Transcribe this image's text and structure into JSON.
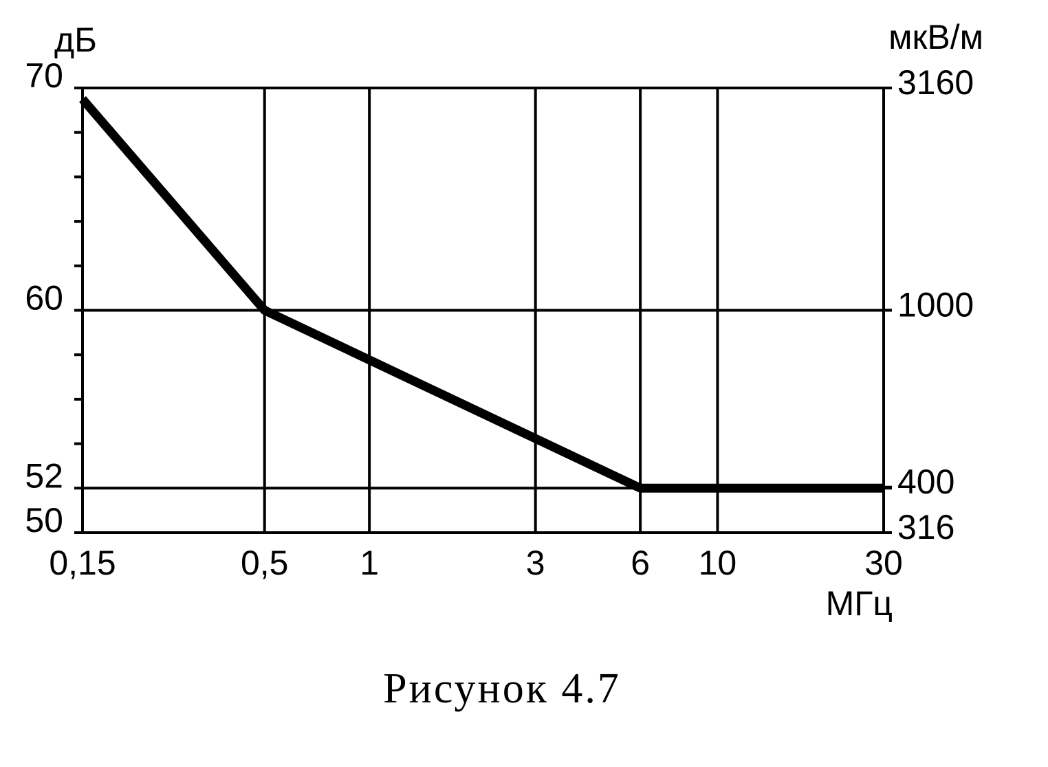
{
  "chart_data": {
    "type": "line",
    "caption": "Рисунок 4.7",
    "ylabel": "дБ",
    "y2label": "мкВ/м",
    "xlabel": "МГц",
    "x": [
      0.15,
      0.5,
      6,
      30
    ],
    "values": [
      69.5,
      60,
      52,
      52
    ],
    "color": "#000000",
    "xscale": "log",
    "xlim": [
      0.15,
      30
    ],
    "xticks": [
      {
        "value": 0.15,
        "label": "0,15"
      },
      {
        "value": 0.5,
        "label": "0,5"
      },
      1,
      3,
      6,
      10,
      30
    ],
    "ylim": [
      50,
      70
    ],
    "yticks": [
      50,
      52,
      60,
      70
    ],
    "yminorticks": [
      54,
      56,
      58,
      62,
      64,
      66,
      68
    ],
    "y2scale": "log",
    "y2lim": [
      316,
      3160
    ],
    "y2ticks": [
      316,
      400,
      1000,
      3160
    ],
    "grid": true
  }
}
